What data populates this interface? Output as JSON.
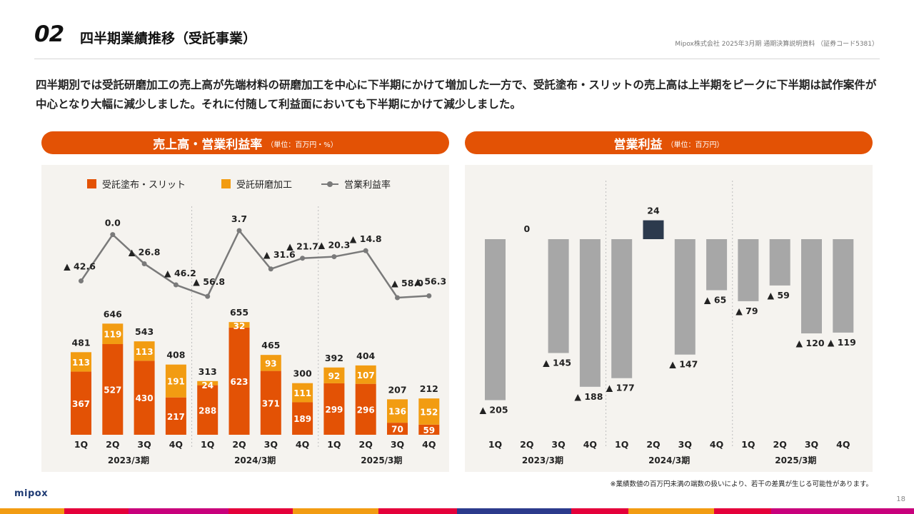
{
  "header": {
    "section_number": "02",
    "title": "四半期業績推移（受託事業）",
    "doc_meta": "Mipox株式会社 2025年3月期 通期決算説明資料 （証券コード5381）"
  },
  "lead_text": "四半期別では受託研磨加工の売上高が先端材料の研磨加工を中心に下半期にかけて増加した一方で、受託塗布・スリットの売上高は上半期をピークに下半期は試作案件が中心となり大幅に減少しました。それに付随して利益面においても下半期にかけて減少しました。",
  "left_panel": {
    "title": "売上高・営業利益率",
    "unit": "（単位：百万円・%）"
  },
  "right_panel": {
    "title": "営業利益",
    "unit": "（単位：百万円）"
  },
  "colors": {
    "accent": "#e35205",
    "coating_slit": "#e35205",
    "polishing": "#f29c12",
    "margin_line": "#7a7a7a",
    "profit_negative": "#a7a7a7",
    "profit_positive": "#2c3a4d",
    "panel_bg": "#f5f3ef"
  },
  "chart_data": [
    {
      "type": "bar",
      "stacked": true,
      "categories": [
        "1Q",
        "2Q",
        "3Q",
        "4Q",
        "1Q",
        "2Q",
        "3Q",
        "4Q",
        "1Q",
        "2Q",
        "3Q",
        "4Q"
      ],
      "groups": [
        "2023/3期",
        "2024/3期",
        "2025/3期"
      ],
      "series": [
        {
          "name": "受託塗布・スリット",
          "color": "#e35205",
          "values": [
            367,
            527,
            430,
            217,
            288,
            623,
            371,
            189,
            299,
            296,
            70,
            59
          ]
        },
        {
          "name": "受託研磨加工",
          "color": "#f29c12",
          "values": [
            113,
            119,
            113,
            191,
            24,
            32,
            93,
            111,
            92,
            107,
            136,
            152
          ]
        }
      ],
      "totals": [
        481,
        646,
        543,
        408,
        313,
        655,
        465,
        300,
        392,
        404,
        207,
        212
      ],
      "line_series": {
        "name": "営業利益率",
        "values": [
          -42.6,
          0.0,
          -26.8,
          -46.2,
          -56.8,
          3.7,
          -31.6,
          -21.7,
          -20.3,
          -14.8,
          -58.0,
          -56.3
        ],
        "labels": [
          "▲ 42.6",
          "0.0",
          "▲ 26.8",
          "▲ 46.2",
          "▲ 56.8",
          "3.7",
          "▲ 31.6",
          "▲ 21.7",
          "▲ 20.3",
          "▲ 14.8",
          "▲ 58.0",
          "▲ 56.3"
        ]
      },
      "legend_position": "top"
    },
    {
      "type": "bar",
      "categories": [
        "1Q",
        "2Q",
        "3Q",
        "4Q",
        "1Q",
        "2Q",
        "3Q",
        "4Q",
        "1Q",
        "2Q",
        "3Q",
        "4Q"
      ],
      "groups": [
        "2023/3期",
        "2024/3期",
        "2025/3期"
      ],
      "values": [
        -205,
        0,
        -145,
        -188,
        -177,
        24,
        -147,
        -65,
        -79,
        -59,
        -120,
        -119
      ],
      "labels": [
        "▲ 205",
        "0",
        "▲ 145",
        "▲ 188",
        "▲ 177",
        "24",
        "▲ 147",
        "▲ 65",
        "▲ 79",
        "▲ 59",
        "▲ 120",
        "▲ 119"
      ]
    }
  ],
  "footnote": "※業績数値の百万円未満の端数の扱いにより、若干の差異が生じる可能性があります。",
  "brand": "mipox",
  "page_number": "18"
}
